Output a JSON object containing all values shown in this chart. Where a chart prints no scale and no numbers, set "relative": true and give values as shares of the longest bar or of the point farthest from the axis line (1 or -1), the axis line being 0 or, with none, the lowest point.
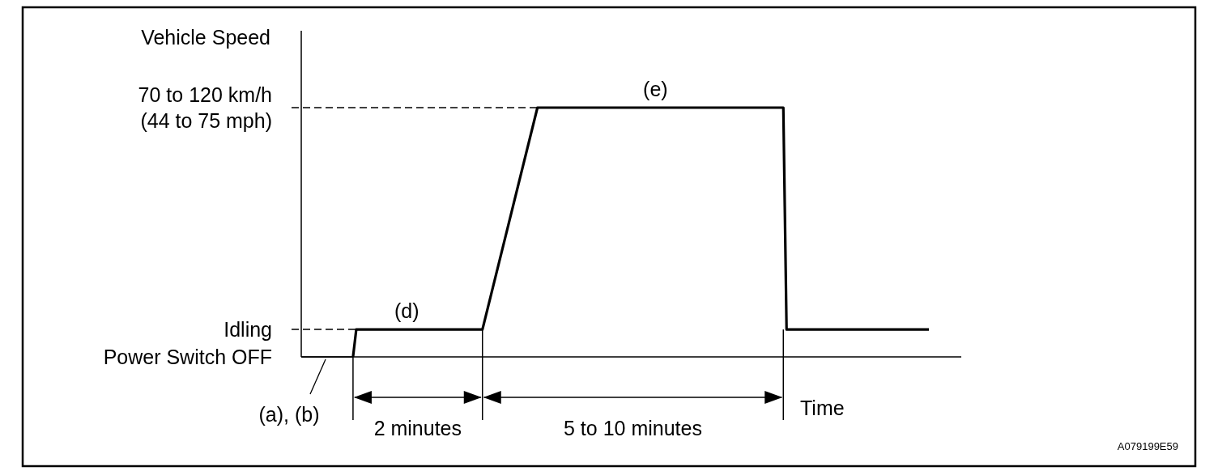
{
  "chart_data": {
    "type": "line",
    "relative": true,
    "xlabel": "Time",
    "ylabel": "Vehicle Speed",
    "categories": [
      null,
      null,
      null,
      null,
      null,
      null,
      null,
      null,
      null,
      null,
      null,
      null,
      null,
      null,
      null,
      null,
      null,
      null,
      null,
      null,
      null,
      null,
      null,
      null,
      null,
      null,
      null,
      null,
      null,
      null,
      null,
      null,
      null,
      null,
      null,
      null,
      null,
      null,
      null,
      null,
      null,
      null,
      null,
      null,
      null,
      null,
      null,
      null,
      null,
      null,
      null,
      null,
      null,
      null,
      null,
      null,
      null,
      null,
      null,
      null,
      null,
      null,
      null,
      null,
      null,
      null,
      null,
      null,
      null,
      null,
      null,
      null,
      null,
      null,
      null,
      null,
      null,
      null,
      null,
      null,
      null,
      null,
      null,
      null,
      null,
      null,
      null,
      null,
      null,
      null,
      null,
      null,
      null,
      null,
      null,
      null,
      null,
      null,
      null,
      null,
      null,
      null,
      null,
      null,
      null,
      null,
      null,
      null,
      null,
      null,
      null,
      null,
      null,
      null,
      null,
      null,
      null,
      null,
      null,
      null,
      null,
      null,
      null,
      null,
      null,
      null,
      null,
      null,
      null,
      null,
      null,
      null,
      null,
      null,
      null,
      null,
      null,
      null,
      null,
      null,
      null,
      null,
      null,
      null,
      null,
      null,
      null,
      null,
      null,
      null,
      null,
      null,
      null,
      null,
      null,
      null,
      null,
      null,
      null,
      null,
      null,
      null,
      null,
      null,
      null,
      null,
      null,
      null,
      null,
      null,
      null,
      null,
      null,
      null,
      null,
      null,
      null,
      null,
      null,
      null,
      null,
      null,
      null,
      null,
      null,
      null,
      null,
      null,
      null,
      null,
      null,
      null,
      null,
      null,
      null,
      null,
      null,
      null,
      null,
      null,
      null,
      null,
      null,
      null,
      null
    ],
    "series": [
      {
        "color": "#000000",
        "values": [
          null,
          null,
          null,
          null,
          null,
          null,
          null,
          null,
          null,
          null,
          null,
          null,
          null,
          null,
          null,
          null,
          0,
          0.11,
          null,
          null,
          null,
          null,
          null,
          null,
          null,
          null,
          null,
          null,
          null,
          null,
          null,
          null,
          null,
          null,
          null,
          null,
          null,
          null,
          null,
          null,
          null,
          null,
          null,
          null,
          null,
          null,
          null,
          null,
          null,
          null,
          null,
          null,
          null,
          null,
          null,
          null,
          0.11,
          null,
          null,
          null,
          null,
          null,
          null,
          null,
          null,
          null,
          null,
          null,
          null,
          null,
          null,
          null,
          null,
          1,
          null,
          null,
          null,
          null,
          null,
          null,
          null,
          null,
          null,
          null,
          null,
          null,
          null,
          null,
          null,
          null,
          null,
          null,
          null,
          null,
          null,
          null,
          null,
          null,
          null,
          null,
          null,
          null,
          null,
          null,
          null,
          null,
          null,
          null,
          null,
          null,
          null,
          null,
          null,
          null,
          null,
          null,
          null,
          null,
          null,
          null,
          null,
          null,
          null,
          null,
          null,
          null,
          null,
          null,
          null,
          null,
          null,
          null,
          null,
          null,
          null,
          null,
          null,
          null,
          null,
          null,
          null,
          null,
          null,
          null,
          null,
          null,
          null,
          null,
          null,
          1,
          0.11,
          null,
          null,
          null,
          null,
          null,
          null,
          null,
          null,
          null,
          null,
          null,
          null,
          null,
          null,
          null,
          null,
          null,
          null,
          null,
          null,
          null,
          null,
          null,
          null,
          null,
          null,
          null,
          null,
          null,
          null,
          null,
          null,
          null,
          null,
          null,
          null,
          null,
          null,
          null,
          null,
          null,
          null,
          null,
          0.11,
          null,
          null,
          null,
          null,
          null,
          null,
          null,
          null,
          null,
          null
        ]
      }
    ],
    "ref_lines": [
      {
        "axis": "y",
        "value": 1,
        "label": "70 to 120 km/h\n(44 to 75 mph)",
        "line_style": "dashed"
      },
      {
        "axis": "y",
        "value": 0.11,
        "label": "Idling",
        "line_style": "dashed"
      },
      {
        "axis": "y",
        "value": 0,
        "label": "Power Switch OFF",
        "line_style": "solid"
      }
    ],
    "annotations": [
      "(a), (b)",
      "(d)",
      "(e)",
      "2 minutes",
      "5 to 10 minutes",
      "A079199E59"
    ]
  }
}
